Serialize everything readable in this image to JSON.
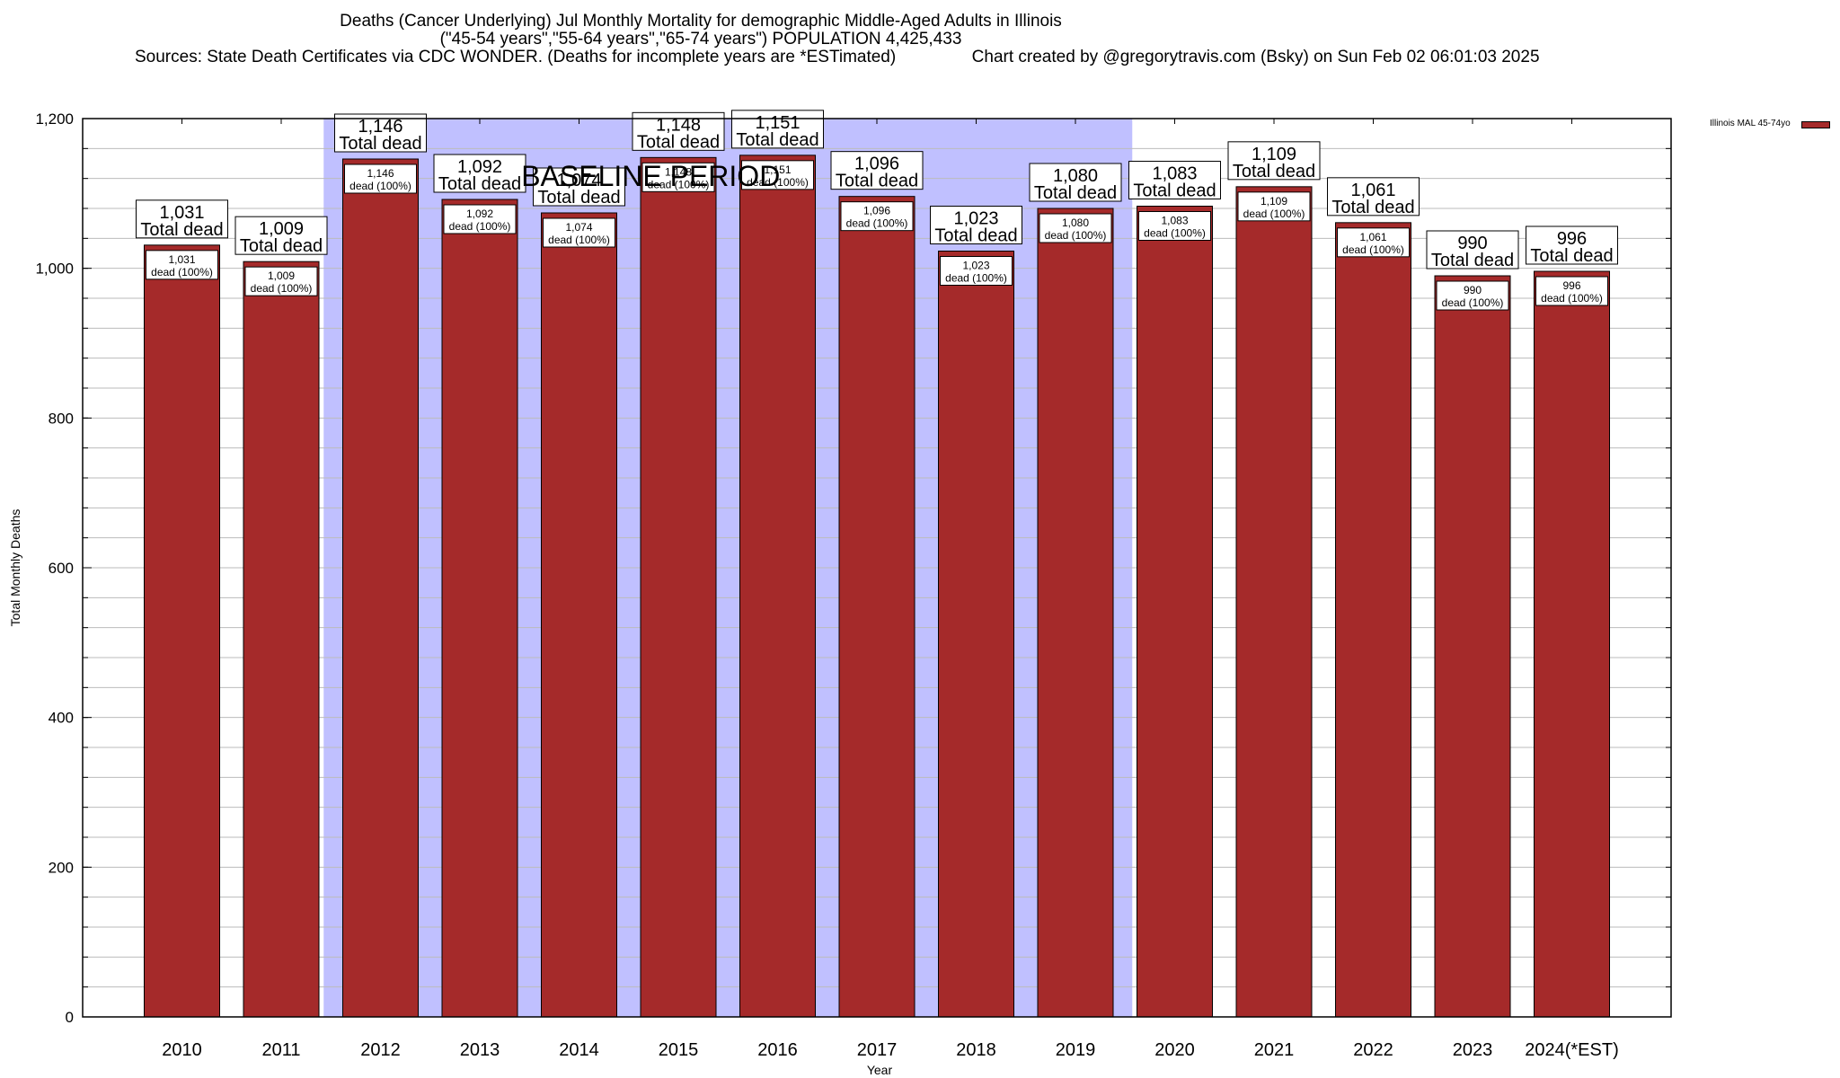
{
  "header": {
    "title_line1": "Deaths (Cancer Underlying) Jul Monthly Mortality for demographic Middle-Aged Adults in Illinois",
    "title_line2": "(\"45-54 years\",\"55-64 years\",\"65-74 years\") POPULATION 4,425,433",
    "sources": "Sources: State Death Certificates via CDC WONDER. (Deaths for incomplete years are *ESTimated)",
    "credit": "Chart created by @gregorytravis.com (Bsky) on Sun Feb 02 06:01:03 2025"
  },
  "chart_data": {
    "type": "bar",
    "title": "Deaths (Cancer Underlying) Jul Monthly Mortality for demographic Middle-Aged Adults in Illinois",
    "xlabel": "Year",
    "ylabel": "Total Monthly Deaths",
    "ylim": [
      0,
      1200
    ],
    "yticks": [
      0,
      200,
      400,
      600,
      800,
      1000,
      1200
    ],
    "ytick_labels": [
      "0",
      "200",
      "400",
      "600",
      "800",
      "1,000",
      "1,200"
    ],
    "minor_grid_step": 40,
    "grid": true,
    "categories": [
      "2010",
      "2011",
      "2012",
      "2013",
      "2014",
      "2015",
      "2016",
      "2017",
      "2018",
      "2019",
      "2020",
      "2021",
      "2022",
      "2023",
      "2024(*EST)"
    ],
    "series": [
      {
        "name": "Illinois MAL 45-74yo",
        "color": "#a52a2a",
        "values": [
          1031,
          1009,
          1146,
          1092,
          1074,
          1148,
          1151,
          1096,
          1023,
          1080,
          1083,
          1109,
          1061,
          990,
          996
        ]
      }
    ],
    "top_labels": [
      "1,031",
      "1,009",
      "1,146",
      "1,092",
      "1,074",
      "1,148",
      "1,151",
      "1,096",
      "1,023",
      "1,080",
      "1,083",
      "1,109",
      "1,061",
      "990",
      "996"
    ],
    "top_label_suffix": "Total dead",
    "inner_label_suffix": "dead (100%)",
    "annotation": {
      "text": "BASELINE PERIOD",
      "start_category": "2012",
      "end_category": "2019",
      "color": "#c0c0ff"
    },
    "legend": {
      "position": "top-right",
      "entries": [
        "Illinois MAL 45-74yo"
      ]
    }
  }
}
